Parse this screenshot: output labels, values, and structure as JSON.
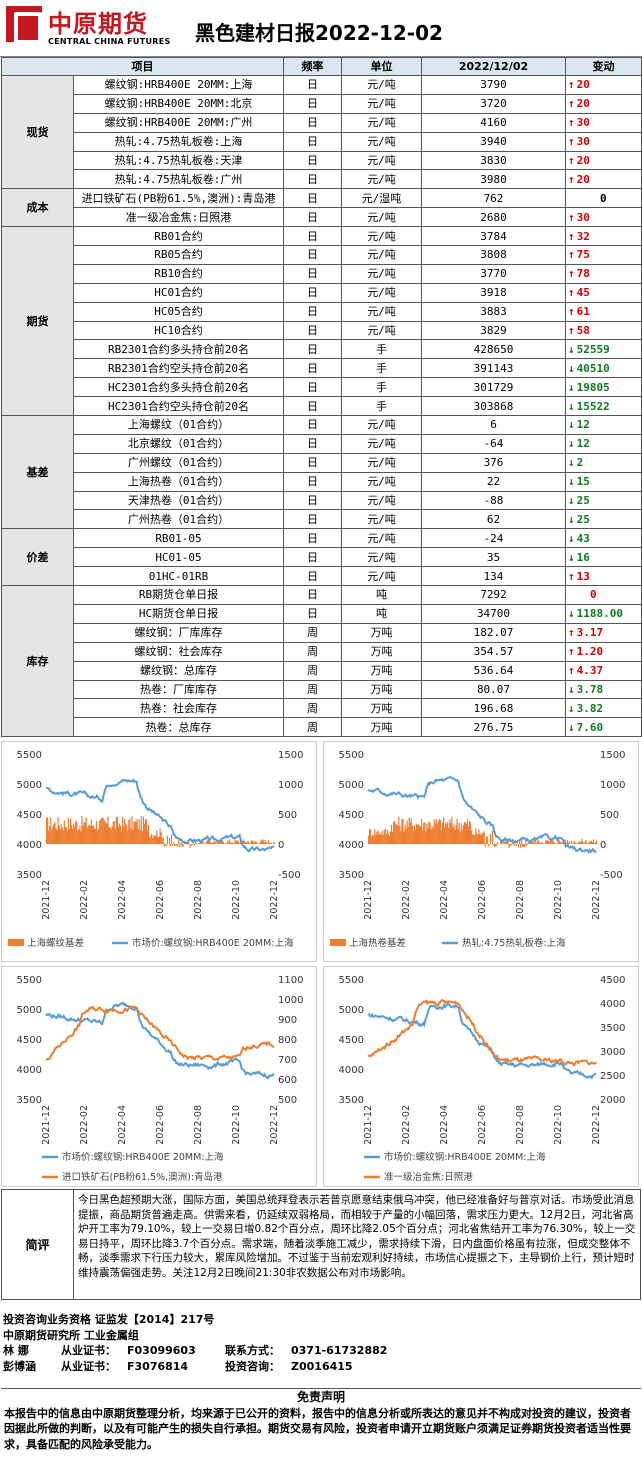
{
  "header": {
    "logo_cn": "中原期货",
    "logo_en": "CENTRAL CHINA FUTURES",
    "title": "黑色建材日报2022-12-02"
  },
  "table": {
    "headers": [
      "项目",
      "频率",
      "单位",
      "2022/12/02",
      "变动"
    ],
    "groups": [
      {
        "category": "现货",
        "rows": [
          {
            "item": "螺纹钢:HRB400E 20MM:上海",
            "freq": "日",
            "unit": "元/吨",
            "value": "3790",
            "change": "20",
            "dir": "up"
          },
          {
            "item": "螺纹钢:HRB400E 20MM:北京",
            "freq": "日",
            "unit": "元/吨",
            "value": "3720",
            "change": "20",
            "dir": "up"
          },
          {
            "item": "螺纹钢:HRB400E 20MM:广州",
            "freq": "日",
            "unit": "元/吨",
            "value": "4160",
            "change": "30",
            "dir": "up"
          },
          {
            "item": "热轧:4.75热轧板卷:上海",
            "freq": "日",
            "unit": "元/吨",
            "value": "3940",
            "change": "30",
            "dir": "up"
          },
          {
            "item": "热轧:4.75热轧板卷:天津",
            "freq": "日",
            "unit": "元/吨",
            "value": "3830",
            "change": "20",
            "dir": "up"
          },
          {
            "item": "热轧:4.75热轧板卷:广州",
            "freq": "日",
            "unit": "元/吨",
            "value": "3980",
            "change": "20",
            "dir": "up"
          }
        ]
      },
      {
        "category": "成本",
        "rows": [
          {
            "item": "进口铁矿石(PB粉61.5%,澳洲):青岛港",
            "freq": "日",
            "unit": "元/湿吨",
            "value": "762",
            "change": "0",
            "dir": "none"
          },
          {
            "item": "准一级冶金焦:日照港",
            "freq": "日",
            "unit": "元/吨",
            "value": "2680",
            "change": "30",
            "dir": "up"
          }
        ]
      },
      {
        "category": "期货",
        "rows": [
          {
            "item": "RB01合约",
            "freq": "日",
            "unit": "元/吨",
            "value": "3784",
            "change": "32",
            "dir": "up"
          },
          {
            "item": "RB05合约",
            "freq": "日",
            "unit": "元/吨",
            "value": "3808",
            "change": "75",
            "dir": "up"
          },
          {
            "item": "RB10合约",
            "freq": "日",
            "unit": "元/吨",
            "value": "3770",
            "change": "78",
            "dir": "up"
          },
          {
            "item": "HC01合约",
            "freq": "日",
            "unit": "元/吨",
            "value": "3918",
            "change": "45",
            "dir": "up"
          },
          {
            "item": "HC05合约",
            "freq": "日",
            "unit": "元/吨",
            "value": "3883",
            "change": "61",
            "dir": "up"
          },
          {
            "item": "HC10合约",
            "freq": "日",
            "unit": "元/吨",
            "value": "3829",
            "change": "58",
            "dir": "up"
          },
          {
            "item": "RB2301合约多头持仓前20名",
            "freq": "日",
            "unit": "手",
            "value": "428650",
            "change": "52559",
            "dir": "down"
          },
          {
            "item": "RB2301合约空头持仓前20名",
            "freq": "日",
            "unit": "手",
            "value": "391143",
            "change": "40510",
            "dir": "down"
          },
          {
            "item": "HC2301合约多头持仓前20名",
            "freq": "日",
            "unit": "手",
            "value": "301729",
            "change": "19805",
            "dir": "down"
          },
          {
            "item": "HC2301合约空头持仓前20名",
            "freq": "日",
            "unit": "手",
            "value": "303868",
            "change": "15522",
            "dir": "down"
          }
        ]
      },
      {
        "category": "基差",
        "rows": [
          {
            "item": "上海螺纹（01合约）",
            "freq": "日",
            "unit": "元/吨",
            "value": "6",
            "change": "12",
            "dir": "down"
          },
          {
            "item": "北京螺纹（01合约）",
            "freq": "日",
            "unit": "元/吨",
            "value": "-64",
            "change": "12",
            "dir": "down"
          },
          {
            "item": "广州螺纹（01合约）",
            "freq": "日",
            "unit": "元/吨",
            "value": "376",
            "change": "2",
            "dir": "down"
          },
          {
            "item": "上海热卷（01合约）",
            "freq": "日",
            "unit": "元/吨",
            "value": "22",
            "change": "15",
            "dir": "down"
          },
          {
            "item": "天津热卷（01合约）",
            "freq": "日",
            "unit": "元/吨",
            "value": "-88",
            "change": "25",
            "dir": "down"
          },
          {
            "item": "广州热卷（01合约）",
            "freq": "日",
            "unit": "元/吨",
            "value": "62",
            "change": "25",
            "dir": "down"
          }
        ]
      },
      {
        "category": "价差",
        "rows": [
          {
            "item": "RB01-05",
            "freq": "日",
            "unit": "元/吨",
            "value": "-24",
            "change": "43",
            "dir": "down"
          },
          {
            "item": "HC01-05",
            "freq": "日",
            "unit": "元/吨",
            "value": "35",
            "change": "16",
            "dir": "down"
          },
          {
            "item": "01HC-01RB",
            "freq": "日",
            "unit": "元/吨",
            "value": "134",
            "change": "13",
            "dir": "up"
          }
        ]
      },
      {
        "category": "库存",
        "rows": [
          {
            "item": "RB期货仓单日报",
            "freq": "日",
            "unit": "吨",
            "value": "7292",
            "change": "0",
            "dir": "none_red"
          },
          {
            "item": "HC期货仓单日报",
            "freq": "日",
            "unit": "吨",
            "value": "34700",
            "change": "1188.00",
            "dir": "down"
          },
          {
            "item": "螺纹钢：厂库库存",
            "freq": "周",
            "unit": "万吨",
            "value": "182.07",
            "change": "3.17",
            "dir": "up"
          },
          {
            "item": "螺纹钢：社会库存",
            "freq": "周",
            "unit": "万吨",
            "value": "354.57",
            "change": "1.20",
            "dir": "up"
          },
          {
            "item": "螺纹钢：总库存",
            "freq": "周",
            "unit": "万吨",
            "value": "536.64",
            "change": "4.37",
            "dir": "up"
          },
          {
            "item": "热卷：厂库库存",
            "freq": "周",
            "unit": "万吨",
            "value": "80.07",
            "change": "3.78",
            "dir": "down"
          },
          {
            "item": "热卷：社会库存",
            "freq": "周",
            "unit": "万吨",
            "value": "196.68",
            "change": "3.82",
            "dir": "down"
          },
          {
            "item": "热卷：总库存",
            "freq": "周",
            "unit": "万吨",
            "value": "276.75",
            "change": "7.60",
            "dir": "down"
          }
        ]
      }
    ]
  },
  "colors": {
    "up": "#d40000",
    "down": "#107a1e",
    "blue": "#5b9bd5",
    "orange": "#ed7d31"
  },
  "chart_data": [
    {
      "type": "area",
      "x_ticks": [
        "2021-12",
        "2022-02",
        "2022-04",
        "2022-06",
        "2022-08",
        "2022-10",
        "2022-12"
      ],
      "y_left_ticks": [
        "5500",
        "5000",
        "4500",
        "4000",
        "3500"
      ],
      "y_right_ticks": [
        "1500",
        "1000",
        "500",
        "0",
        "-500"
      ],
      "series": [
        {
          "name": "上海螺纹基差",
          "kind": "bar",
          "color": "#ed7d31"
        },
        {
          "name": "市场价:螺纹钢:HRB400E 20MM:上海",
          "kind": "line",
          "color": "#5b9bd5"
        }
      ]
    },
    {
      "type": "area",
      "x_ticks": [
        "2021-12",
        "2022-02",
        "2022-04",
        "2022-06",
        "2022-08",
        "2022-10",
        "2022-12"
      ],
      "y_left_ticks": [
        "5500",
        "5000",
        "4500",
        "4000",
        "3500"
      ],
      "y_right_ticks": [
        "1500",
        "1000",
        "500",
        "0",
        "-500"
      ],
      "series": [
        {
          "name": "上海热卷基差",
          "kind": "bar",
          "color": "#ed7d31"
        },
        {
          "name": "热轧:4.75热轧板卷:上海",
          "kind": "line",
          "color": "#5b9bd5"
        }
      ]
    },
    {
      "type": "line",
      "x_ticks": [
        "2021-12",
        "2022-02",
        "2022-04",
        "2022-06",
        "2022-08",
        "2022-10",
        "2022-12"
      ],
      "y_left_ticks": [
        "5500",
        "5000",
        "4500",
        "4000",
        "3500"
      ],
      "y_right_ticks": [
        "1100",
        "1000",
        "900",
        "800",
        "700",
        "600",
        "500"
      ],
      "series": [
        {
          "name": "市场价:螺纹钢:HRB400E 20MM:上海",
          "color": "#5b9bd5"
        },
        {
          "name": "进口铁矿石(PB粉61.5%,澳洲):青岛港",
          "color": "#ed7d31"
        }
      ]
    },
    {
      "type": "line",
      "x_ticks": [
        "2021-12",
        "2022-02",
        "2022-04",
        "2022-06",
        "2022-08",
        "2022-10",
        "2022-12"
      ],
      "y_left_ticks": [
        "5500",
        "5000",
        "4500",
        "4000",
        "3500"
      ],
      "y_right_ticks": [
        "4500",
        "4000",
        "3500",
        "3000",
        "2500",
        "2000"
      ],
      "series": [
        {
          "name": "市场价:螺纹钢:HRB400E 20MM:上海",
          "color": "#5b9bd5"
        },
        {
          "name": "准一级冶金焦:日照港",
          "color": "#ed7d31"
        }
      ]
    }
  ],
  "comment": {
    "label": "简评",
    "text": "今日黑色超预期大涨，国际方面，美国总统拜登表示若普京愿意结束俄乌冲突，他已经准备好与普京对话。市场受此消息提振，商品期货普遍走高。供需来看，仍延续双弱格局，而相较于产量的小幅回落，需求压力更大。12月2日，河北省高炉开工率为79.10%，较上一交易日增0.82个百分点，周环比降2.05个百分点；河北省焦结开工率为76.30%，较上一交易日持平，周环比降3.7个百分点。需求端，随着淡季施工减少，需求持续下滑，日内盘面价格虽有拉涨，但成交整体不畅，淡季需求下行压力较大，累库风险增加。不过鉴于当前宏观利好持续，市场信心提振之下，主导钢价上行，预计短时维持震荡偏强走势。关注12月2日晚间21:30非农数据公布对市场影响。"
  },
  "contact": {
    "line1": "投资咨询业务资格  证监发【2014】217号",
    "line2": "中原期货研究所   工业金属组",
    "p1_name": "林  娜",
    "p1_cert_label": "从业证书：",
    "p1_cert": "F03099603",
    "contact_label": "联系方式：",
    "contact_value": "0371-61732882",
    "p2_name": "彭博涵",
    "p2_cert_label": "从业证书：",
    "p2_cert": "F3076814",
    "advisory_label": "投资咨询：",
    "advisory_value": "Z0016415"
  },
  "disclaimer": {
    "title": "免责声明",
    "text": "本报告中的信息由中原期货整理分析，均来源于已公开的资料，报告中的信息分析或所表达的意见并不构成对投资的建议，投资者因据此所做的判断，以及有可能产生的损失自行承担。期货交易有风险，投资者申请开立期货账户须满足证券期货投资者适当性要求，具备匹配的风险承受能力。"
  }
}
